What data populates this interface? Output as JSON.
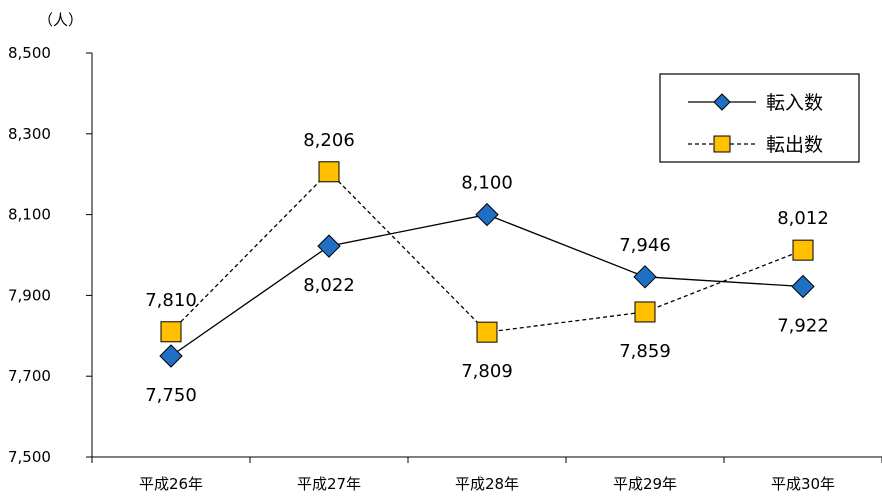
{
  "chart_data": {
    "type": "line",
    "y_unit": "（人）",
    "categories": [
      "平成26年",
      "平成27年",
      "平成28年",
      "平成29年",
      "平成30年"
    ],
    "ylim": [
      7500,
      8500
    ],
    "yticks": [
      7500,
      7700,
      7900,
      8100,
      8300,
      8500
    ],
    "ytick_labels": [
      "7,500",
      "7,700",
      "7,900",
      "8,100",
      "8,300",
      "8,500"
    ],
    "grid": false,
    "legend_position": "top-right",
    "series": [
      {
        "name": "転入数",
        "values": [
          7750,
          8022,
          8100,
          7946,
          7922
        ],
        "labels": [
          "7,750",
          "8,022",
          "8,100",
          "7,946",
          "7,922"
        ],
        "marker": "diamond",
        "line_style": "solid",
        "color": "#1F6FC5"
      },
      {
        "name": "転出数",
        "values": [
          7810,
          8206,
          7809,
          7859,
          8012
        ],
        "labels": [
          "7,810",
          "8,206",
          "7,809",
          "7,859",
          "8,012"
        ],
        "marker": "square",
        "line_style": "dashed",
        "color": "#FFC000"
      }
    ]
  }
}
